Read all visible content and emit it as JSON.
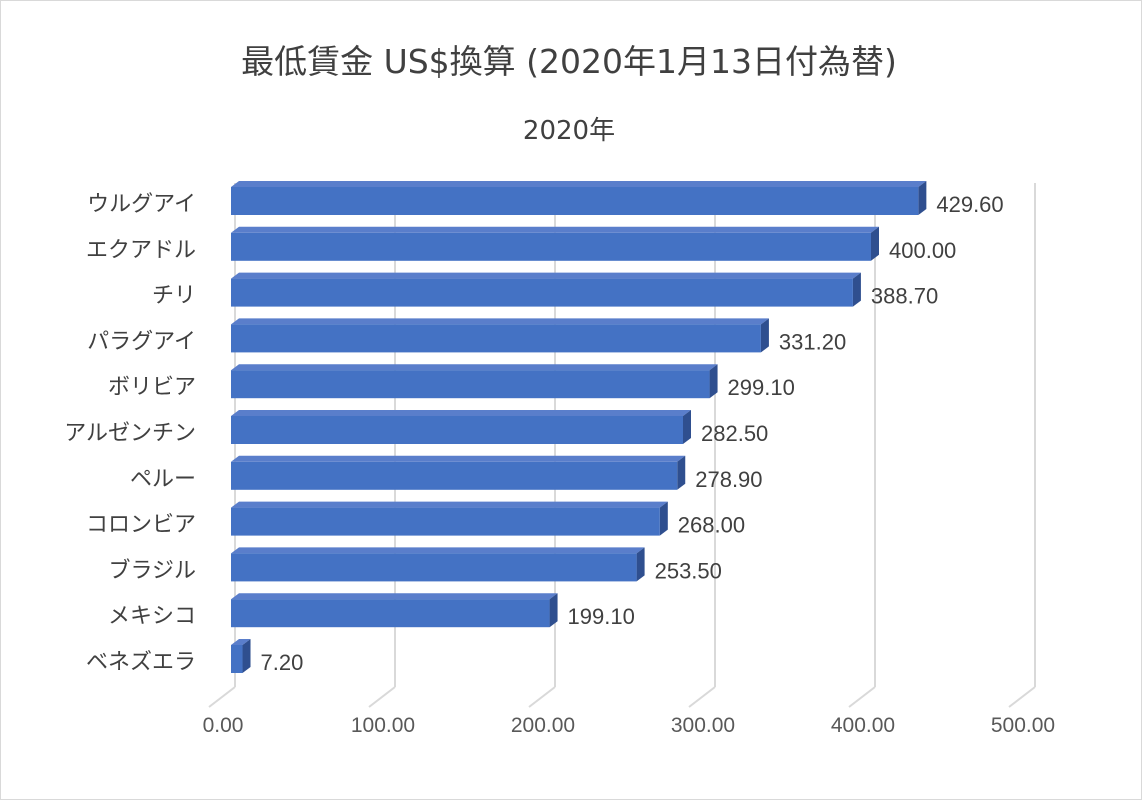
{
  "chart_data": {
    "type": "bar",
    "orientation": "horizontal",
    "style": "3d",
    "title": "最低賃金 US$換算 (2020年1月13日付為替)",
    "subtitle": "2020年",
    "xlim": [
      0,
      500
    ],
    "xticks": [
      "0.00",
      "100.00",
      "200.00",
      "300.00",
      "400.00",
      "500.00"
    ],
    "grid": true,
    "legend": "none",
    "bar_color": "#4472C4",
    "bar_top_color": "#5A7ECB",
    "bar_side_color": "#2F4F8F",
    "grid_color": "#d9d9d9",
    "categories": [
      "ウルグアイ",
      "エクアドル",
      "チリ",
      "パラグアイ",
      "ボリビア",
      "アルゼンチン",
      "ペルー",
      "コロンビア",
      "ブラジル",
      "メキシコ",
      "ベネズエラ"
    ],
    "values": [
      429.6,
      400.0,
      388.7,
      331.2,
      299.1,
      282.5,
      278.9,
      268.0,
      253.5,
      199.1,
      7.2
    ],
    "data_labels": [
      "429.60",
      "400.00",
      "388.70",
      "331.20",
      "299.10",
      "282.50",
      "278.90",
      "268.00",
      "253.50",
      "199.10",
      "7.20"
    ]
  }
}
